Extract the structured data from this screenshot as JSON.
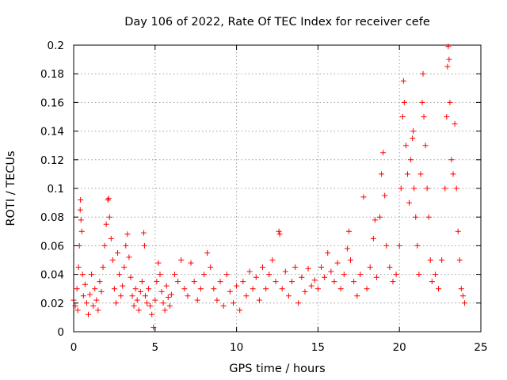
{
  "chart_data": {
    "type": "scatter",
    "title": "Day 106 of 2022, Rate Of TEC Index for receiver cefe",
    "xlabel": "GPS time / hours",
    "ylabel": "ROTI / TECUs",
    "xlim": [
      0,
      25
    ],
    "ylim": [
      0,
      0.2
    ],
    "x_ticks": [
      0,
      5,
      10,
      15,
      20,
      25
    ],
    "x_tick_labels": [
      "0",
      "5",
      "10",
      "15",
      "20",
      "25"
    ],
    "y_ticks": [
      0,
      0.02,
      0.04,
      0.06,
      0.08,
      0.1,
      0.12,
      0.14,
      0.16,
      0.18,
      0.2
    ],
    "y_tick_labels": [
      "0",
      "0.02",
      "0.04",
      "0.06",
      "0.08",
      "0.1",
      "0.12",
      "0.14",
      "0.16",
      "0.18",
      "0.2"
    ],
    "grid": true,
    "marker": "+",
    "series_color": "#ff0000",
    "series": [
      {
        "points": [
          [
            0.0,
            0.022
          ],
          [
            0.1,
            0.018
          ],
          [
            0.2,
            0.03
          ],
          [
            0.25,
            0.015
          ],
          [
            0.3,
            0.045
          ],
          [
            0.35,
            0.06
          ],
          [
            0.4,
            0.085
          ],
          [
            0.42,
            0.092
          ],
          [
            0.45,
            0.078
          ],
          [
            0.5,
            0.07
          ],
          [
            0.55,
            0.04
          ],
          [
            0.6,
            0.025
          ],
          [
            0.7,
            0.033
          ],
          [
            0.8,
            0.02
          ],
          [
            0.9,
            0.012
          ],
          [
            1.0,
            0.026
          ],
          [
            1.1,
            0.04
          ],
          [
            1.2,
            0.018
          ],
          [
            1.3,
            0.03
          ],
          [
            1.4,
            0.022
          ],
          [
            1.5,
            0.015
          ],
          [
            1.6,
            0.035
          ],
          [
            1.7,
            0.028
          ],
          [
            1.8,
            0.045
          ],
          [
            1.9,
            0.06
          ],
          [
            2.0,
            0.075
          ],
          [
            2.1,
            0.092
          ],
          [
            2.15,
            0.093
          ],
          [
            2.2,
            0.08
          ],
          [
            2.3,
            0.065
          ],
          [
            2.4,
            0.05
          ],
          [
            2.5,
            0.03
          ],
          [
            2.6,
            0.02
          ],
          [
            2.7,
            0.055
          ],
          [
            2.8,
            0.04
          ],
          [
            2.9,
            0.025
          ],
          [
            3.0,
            0.032
          ],
          [
            3.1,
            0.045
          ],
          [
            3.2,
            0.06
          ],
          [
            3.3,
            0.068
          ],
          [
            3.4,
            0.052
          ],
          [
            3.5,
            0.038
          ],
          [
            3.6,
            0.025
          ],
          [
            3.7,
            0.018
          ],
          [
            3.8,
            0.03
          ],
          [
            3.9,
            0.022
          ],
          [
            4.0,
            0.015
          ],
          [
            4.1,
            0.028
          ],
          [
            4.2,
            0.035
          ],
          [
            4.3,
            0.069
          ],
          [
            4.35,
            0.06
          ],
          [
            4.4,
            0.025
          ],
          [
            4.5,
            0.02
          ],
          [
            4.6,
            0.03
          ],
          [
            4.7,
            0.018
          ],
          [
            4.8,
            0.012
          ],
          [
            4.9,
            0.003
          ],
          [
            5.0,
            0.022
          ],
          [
            5.1,
            0.035
          ],
          [
            5.2,
            0.048
          ],
          [
            5.3,
            0.04
          ],
          [
            5.4,
            0.028
          ],
          [
            5.5,
            0.02
          ],
          [
            5.6,
            0.015
          ],
          [
            5.7,
            0.032
          ],
          [
            5.8,
            0.024
          ],
          [
            5.9,
            0.018
          ],
          [
            6.0,
            0.026
          ],
          [
            6.2,
            0.04
          ],
          [
            6.4,
            0.035
          ],
          [
            6.6,
            0.05
          ],
          [
            6.8,
            0.03
          ],
          [
            7.0,
            0.025
          ],
          [
            7.2,
            0.048
          ],
          [
            7.4,
            0.035
          ],
          [
            7.6,
            0.022
          ],
          [
            7.8,
            0.03
          ],
          [
            8.0,
            0.04
          ],
          [
            8.2,
            0.055
          ],
          [
            8.4,
            0.045
          ],
          [
            8.6,
            0.03
          ],
          [
            8.8,
            0.022
          ],
          [
            9.0,
            0.035
          ],
          [
            9.2,
            0.018
          ],
          [
            9.4,
            0.04
          ],
          [
            9.6,
            0.028
          ],
          [
            9.8,
            0.02
          ],
          [
            10.0,
            0.032
          ],
          [
            10.2,
            0.015
          ],
          [
            10.4,
            0.035
          ],
          [
            10.6,
            0.025
          ],
          [
            10.8,
            0.042
          ],
          [
            11.0,
            0.03
          ],
          [
            11.2,
            0.038
          ],
          [
            11.4,
            0.022
          ],
          [
            11.6,
            0.045
          ],
          [
            11.8,
            0.03
          ],
          [
            12.0,
            0.04
          ],
          [
            12.2,
            0.05
          ],
          [
            12.4,
            0.035
          ],
          [
            12.6,
            0.07
          ],
          [
            12.65,
            0.068
          ],
          [
            12.8,
            0.03
          ],
          [
            13.0,
            0.042
          ],
          [
            13.2,
            0.025
          ],
          [
            13.4,
            0.035
          ],
          [
            13.6,
            0.045
          ],
          [
            13.8,
            0.02
          ],
          [
            14.0,
            0.038
          ],
          [
            14.2,
            0.028
          ],
          [
            14.4,
            0.044
          ],
          [
            14.6,
            0.032
          ],
          [
            14.8,
            0.036
          ],
          [
            15.0,
            0.03
          ],
          [
            15.2,
            0.045
          ],
          [
            15.4,
            0.038
          ],
          [
            15.6,
            0.055
          ],
          [
            15.8,
            0.042
          ],
          [
            16.0,
            0.035
          ],
          [
            16.2,
            0.048
          ],
          [
            16.4,
            0.03
          ],
          [
            16.6,
            0.04
          ],
          [
            16.8,
            0.058
          ],
          [
            16.9,
            0.07
          ],
          [
            17.0,
            0.05
          ],
          [
            17.2,
            0.035
          ],
          [
            17.4,
            0.025
          ],
          [
            17.6,
            0.04
          ],
          [
            17.8,
            0.094
          ],
          [
            18.0,
            0.03
          ],
          [
            18.2,
            0.045
          ],
          [
            18.4,
            0.065
          ],
          [
            18.5,
            0.078
          ],
          [
            18.6,
            0.038
          ],
          [
            18.8,
            0.08
          ],
          [
            18.9,
            0.11
          ],
          [
            19.0,
            0.125
          ],
          [
            19.1,
            0.095
          ],
          [
            19.2,
            0.06
          ],
          [
            19.4,
            0.045
          ],
          [
            19.6,
            0.035
          ],
          [
            19.8,
            0.04
          ],
          [
            20.0,
            0.06
          ],
          [
            20.1,
            0.1
          ],
          [
            20.2,
            0.15
          ],
          [
            20.25,
            0.175
          ],
          [
            20.3,
            0.16
          ],
          [
            20.4,
            0.13
          ],
          [
            20.5,
            0.11
          ],
          [
            20.6,
            0.09
          ],
          [
            20.7,
            0.12
          ],
          [
            20.8,
            0.135
          ],
          [
            20.85,
            0.14
          ],
          [
            20.9,
            0.1
          ],
          [
            21.0,
            0.08
          ],
          [
            21.1,
            0.06
          ],
          [
            21.2,
            0.04
          ],
          [
            21.3,
            0.11
          ],
          [
            21.4,
            0.16
          ],
          [
            21.45,
            0.18
          ],
          [
            21.5,
            0.15
          ],
          [
            21.6,
            0.13
          ],
          [
            21.7,
            0.1
          ],
          [
            21.8,
            0.08
          ],
          [
            21.9,
            0.05
          ],
          [
            22.0,
            0.035
          ],
          [
            22.2,
            0.04
          ],
          [
            22.4,
            0.03
          ],
          [
            22.6,
            0.05
          ],
          [
            22.8,
            0.1
          ],
          [
            22.9,
            0.15
          ],
          [
            22.95,
            0.185
          ],
          [
            23.0,
            0.199
          ],
          [
            23.05,
            0.19
          ],
          [
            23.1,
            0.16
          ],
          [
            23.2,
            0.12
          ],
          [
            23.3,
            0.11
          ],
          [
            23.4,
            0.145
          ],
          [
            23.5,
            0.1
          ],
          [
            23.6,
            0.07
          ],
          [
            23.7,
            0.05
          ],
          [
            23.8,
            0.03
          ],
          [
            23.9,
            0.025
          ],
          [
            24.0,
            0.02
          ]
        ]
      }
    ]
  }
}
